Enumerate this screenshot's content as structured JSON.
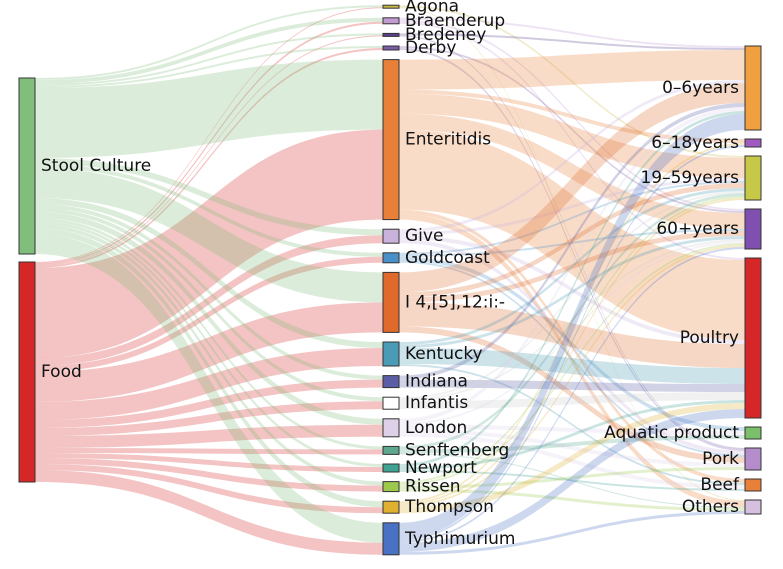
{
  "chart_data": {
    "type": "sankey",
    "nodes": [
      {
        "name": "Stool Culture",
        "color": "#7fbf7b"
      },
      {
        "name": "Food",
        "color": "#d62728"
      },
      {
        "name": "Agona",
        "color": "#c8b645"
      },
      {
        "name": "Braenderup",
        "color": "#c39bd3"
      },
      {
        "name": "Bredeney",
        "color": "#5b3f8c"
      },
      {
        "name": "Derby",
        "color": "#7d5ba6"
      },
      {
        "name": "Enteritidis",
        "color": "#e8803a"
      },
      {
        "name": "Give",
        "color": "#c9b3dd"
      },
      {
        "name": "Goldcoast",
        "color": "#4a90c8"
      },
      {
        "name": "I 4,[5],12:i:-",
        "color": "#e06a2c"
      },
      {
        "name": "Kentucky",
        "color": "#4a9bb5"
      },
      {
        "name": "Indiana",
        "color": "#5b5ea6"
      },
      {
        "name": "Infantis",
        "color": "#ffffff"
      },
      {
        "name": "London",
        "color": "#ddd0e8"
      },
      {
        "name": "Senftenberg",
        "color": "#5ba88e"
      },
      {
        "name": "Newport",
        "color": "#3fa393"
      },
      {
        "name": "Rissen",
        "color": "#9cc94b"
      },
      {
        "name": "Thompson",
        "color": "#e0b030"
      },
      {
        "name": "Typhimurium",
        "color": "#4a72c4"
      },
      {
        "name": "0–6years",
        "color": "#f0a040"
      },
      {
        "name": "6–18years",
        "color": "#a05bc0"
      },
      {
        "name": "19–59years",
        "color": "#c8c848"
      },
      {
        "name": "60+years",
        "color": "#8050b0"
      },
      {
        "name": "Poultry",
        "color": "#d62728"
      },
      {
        "name": "Aquatic product",
        "color": "#7bbf6a"
      },
      {
        "name": "Pork",
        "color": "#b58ccc"
      },
      {
        "name": "Beef",
        "color": "#e8803a"
      },
      {
        "name": "Others",
        "color": "#d5c0e0"
      }
    ],
    "links": [
      {
        "source": 0,
        "target": 2,
        "value": 2
      },
      {
        "source": 1,
        "target": 2,
        "value": 1
      },
      {
        "source": 0,
        "target": 3,
        "value": 4
      },
      {
        "source": 1,
        "target": 3,
        "value": 2
      },
      {
        "source": 0,
        "target": 4,
        "value": 2
      },
      {
        "source": 1,
        "target": 4,
        "value": 1
      },
      {
        "source": 0,
        "target": 5,
        "value": 2
      },
      {
        "source": 1,
        "target": 5,
        "value": 2
      },
      {
        "source": 0,
        "target": 6,
        "value": 70
      },
      {
        "source": 1,
        "target": 6,
        "value": 90
      },
      {
        "source": 0,
        "target": 7,
        "value": 6
      },
      {
        "source": 1,
        "target": 7,
        "value": 8
      },
      {
        "source": 0,
        "target": 8,
        "value": 4
      },
      {
        "source": 1,
        "target": 8,
        "value": 6
      },
      {
        "source": 0,
        "target": 9,
        "value": 30
      },
      {
        "source": 1,
        "target": 9,
        "value": 30
      },
      {
        "source": 0,
        "target": 10,
        "value": 6
      },
      {
        "source": 1,
        "target": 10,
        "value": 18
      },
      {
        "source": 0,
        "target": 11,
        "value": 4
      },
      {
        "source": 1,
        "target": 11,
        "value": 8
      },
      {
        "source": 0,
        "target": 12,
        "value": 4
      },
      {
        "source": 1,
        "target": 12,
        "value": 8
      },
      {
        "source": 0,
        "target": 13,
        "value": 6
      },
      {
        "source": 1,
        "target": 13,
        "value": 12
      },
      {
        "source": 0,
        "target": 14,
        "value": 3
      },
      {
        "source": 1,
        "target": 14,
        "value": 5
      },
      {
        "source": 0,
        "target": 15,
        "value": 3
      },
      {
        "source": 1,
        "target": 15,
        "value": 5
      },
      {
        "source": 0,
        "target": 16,
        "value": 4
      },
      {
        "source": 1,
        "target": 16,
        "value": 6
      },
      {
        "source": 0,
        "target": 17,
        "value": 6
      },
      {
        "source": 1,
        "target": 17,
        "value": 6
      },
      {
        "source": 0,
        "target": 18,
        "value": 20
      },
      {
        "source": 1,
        "target": 18,
        "value": 12
      },
      {
        "source": 2,
        "target": 21,
        "value": 2
      },
      {
        "source": 2,
        "target": 27,
        "value": 1
      },
      {
        "source": 3,
        "target": 19,
        "value": 2
      },
      {
        "source": 3,
        "target": 22,
        "value": 2
      },
      {
        "source": 3,
        "target": 23,
        "value": 2
      },
      {
        "source": 4,
        "target": 19,
        "value": 2
      },
      {
        "source": 4,
        "target": 25,
        "value": 1
      },
      {
        "source": 5,
        "target": 22,
        "value": 2
      },
      {
        "source": 5,
        "target": 25,
        "value": 2
      },
      {
        "source": 6,
        "target": 19,
        "value": 30
      },
      {
        "source": 6,
        "target": 20,
        "value": 4
      },
      {
        "source": 6,
        "target": 21,
        "value": 20
      },
      {
        "source": 6,
        "target": 22,
        "value": 16
      },
      {
        "source": 6,
        "target": 23,
        "value": 80
      },
      {
        "source": 6,
        "target": 26,
        "value": 4
      },
      {
        "source": 6,
        "target": 27,
        "value": 6
      },
      {
        "source": 7,
        "target": 19,
        "value": 3
      },
      {
        "source": 7,
        "target": 21,
        "value": 3
      },
      {
        "source": 7,
        "target": 23,
        "value": 4
      },
      {
        "source": 7,
        "target": 25,
        "value": 4
      },
      {
        "source": 8,
        "target": 21,
        "value": 2
      },
      {
        "source": 8,
        "target": 22,
        "value": 2
      },
      {
        "source": 8,
        "target": 24,
        "value": 4
      },
      {
        "source": 8,
        "target": 25,
        "value": 2
      },
      {
        "source": 9,
        "target": 19,
        "value": 20
      },
      {
        "source": 9,
        "target": 21,
        "value": 5
      },
      {
        "source": 9,
        "target": 22,
        "value": 5
      },
      {
        "source": 9,
        "target": 23,
        "value": 24
      },
      {
        "source": 9,
        "target": 25,
        "value": 6
      },
      {
        "source": 10,
        "target": 21,
        "value": 3
      },
      {
        "source": 10,
        "target": 22,
        "value": 3
      },
      {
        "source": 10,
        "target": 23,
        "value": 16
      },
      {
        "source": 10,
        "target": 26,
        "value": 2
      },
      {
        "source": 11,
        "target": 19,
        "value": 4
      },
      {
        "source": 11,
        "target": 23,
        "value": 8
      },
      {
        "source": 12,
        "target": 21,
        "value": 2
      },
      {
        "source": 12,
        "target": 22,
        "value": 2
      },
      {
        "source": 12,
        "target": 23,
        "value": 8
      },
      {
        "source": 13,
        "target": 19,
        "value": 4
      },
      {
        "source": 13,
        "target": 22,
        "value": 2
      },
      {
        "source": 13,
        "target": 24,
        "value": 4
      },
      {
        "source": 13,
        "target": 25,
        "value": 4
      },
      {
        "source": 13,
        "target": 26,
        "value": 4
      },
      {
        "source": 14,
        "target": 21,
        "value": 3
      },
      {
        "source": 14,
        "target": 24,
        "value": 4
      },
      {
        "source": 14,
        "target": 27,
        "value": 1
      },
      {
        "source": 15,
        "target": 19,
        "value": 3
      },
      {
        "source": 15,
        "target": 23,
        "value": 3
      },
      {
        "source": 15,
        "target": 26,
        "value": 2
      },
      {
        "source": 16,
        "target": 21,
        "value": 2
      },
      {
        "source": 16,
        "target": 22,
        "value": 2
      },
      {
        "source": 16,
        "target": 25,
        "value": 3
      },
      {
        "source": 16,
        "target": 27,
        "value": 3
      },
      {
        "source": 17,
        "target": 20,
        "value": 2
      },
      {
        "source": 17,
        "target": 21,
        "value": 2
      },
      {
        "source": 17,
        "target": 22,
        "value": 2
      },
      {
        "source": 17,
        "target": 23,
        "value": 6
      },
      {
        "source": 18,
        "target": 19,
        "value": 16
      },
      {
        "source": 18,
        "target": 20,
        "value": 2
      },
      {
        "source": 18,
        "target": 22,
        "value": 2
      },
      {
        "source": 18,
        "target": 23,
        "value": 9
      },
      {
        "source": 18,
        "target": 27,
        "value": 3
      }
    ]
  }
}
